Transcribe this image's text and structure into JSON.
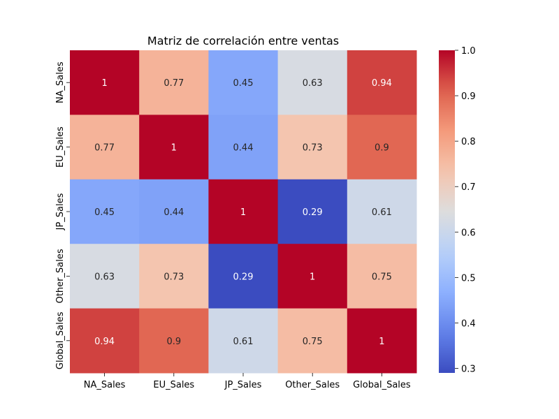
{
  "chart_data": {
    "type": "heatmap",
    "title": "Matriz de correlación entre ventas",
    "x_labels": [
      "NA_Sales",
      "EU_Sales",
      "JP_Sales",
      "Other_Sales",
      "Global_Sales"
    ],
    "y_labels": [
      "NA_Sales",
      "EU_Sales",
      "JP_Sales",
      "Other_Sales",
      "Global_Sales"
    ],
    "matrix": [
      [
        1,
        0.77,
        0.45,
        0.63,
        0.94
      ],
      [
        0.77,
        1,
        0.44,
        0.73,
        0.9
      ],
      [
        0.45,
        0.44,
        1,
        0.29,
        0.61
      ],
      [
        0.63,
        0.73,
        0.29,
        1,
        0.75
      ],
      [
        0.94,
        0.9,
        0.61,
        0.75,
        1
      ]
    ],
    "annotations": [
      [
        "1",
        "0.77",
        "0.45",
        "0.63",
        "0.94"
      ],
      [
        "0.77",
        "1",
        "0.44",
        "0.73",
        "0.9"
      ],
      [
        "0.45",
        "0.44",
        "1",
        "0.29",
        "0.61"
      ],
      [
        "0.63",
        "0.73",
        "0.29",
        "1",
        "0.75"
      ],
      [
        "0.94",
        "0.9",
        "0.61",
        "0.75",
        "1"
      ]
    ],
    "colormap": "coolwarm",
    "vmin": 0.29,
    "vmax": 1.0,
    "colorbar_ticks": [
      0.3,
      0.4,
      0.5,
      0.6,
      0.7,
      0.8,
      0.9,
      1.0
    ],
    "colorbar_tick_labels": [
      "0.3",
      "0.4",
      "0.5",
      "0.6",
      "0.7",
      "0.8",
      "0.9",
      "1.0"
    ],
    "grid": false,
    "legend": "colorbar-right"
  }
}
